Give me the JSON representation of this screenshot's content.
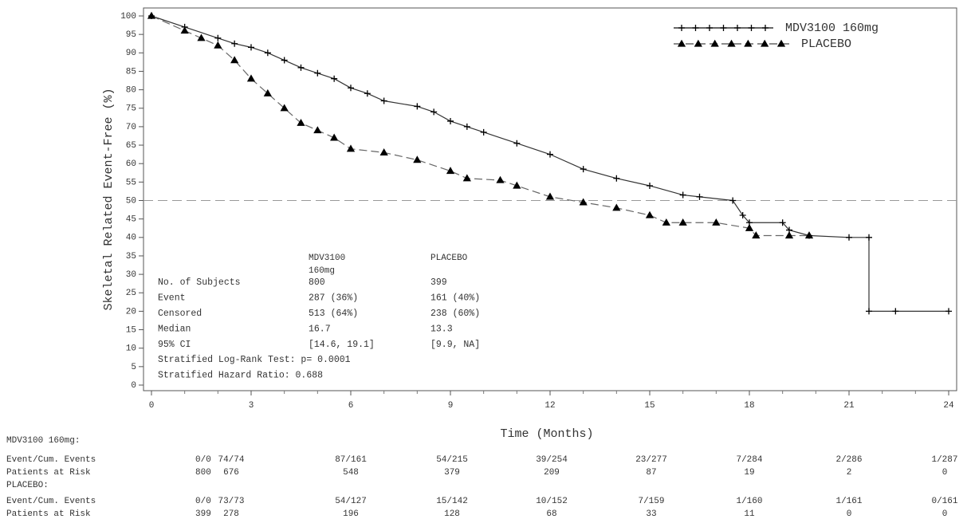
{
  "chart_data": {
    "type": "line",
    "ylabel": "Skeletal Related Event-Free (%)",
    "xlabel": "Time (Months)",
    "xlim": [
      0,
      24
    ],
    "xticks": [
      0,
      3,
      6,
      9,
      12,
      15,
      18,
      21,
      24
    ],
    "ylim": [
      0,
      100
    ],
    "yticks": [
      0,
      5,
      10,
      15,
      20,
      25,
      30,
      35,
      40,
      45,
      50,
      55,
      60,
      65,
      70,
      75,
      80,
      85,
      90,
      95,
      100
    ],
    "hline": 50,
    "legend": "upper right",
    "series": [
      {
        "name": "MDV3100 160mg",
        "color": "#333333",
        "dash": false,
        "marker": "plus",
        "x": [
          0,
          1,
          2,
          2.5,
          3,
          3.5,
          4,
          4.5,
          5,
          5.5,
          6,
          6.5,
          7,
          8,
          8.5,
          9,
          9.5,
          10,
          11,
          12,
          13,
          14,
          15,
          16,
          16.5,
          17.5,
          17.8,
          18,
          19,
          19.2,
          19.8,
          21,
          21.6,
          21.6,
          22.4,
          24
        ],
        "values": [
          100,
          97,
          94,
          92.5,
          91.5,
          90,
          88,
          86,
          84.5,
          83,
          80.5,
          79,
          77,
          75.5,
          74,
          71.5,
          70,
          68.5,
          65.5,
          62.5,
          58.5,
          56,
          54,
          51.5,
          51,
          50,
          46,
          44,
          44,
          42,
          40.5,
          40,
          40,
          20,
          20,
          20
        ]
      },
      {
        "name": "PLACEBO",
        "color": "#666666",
        "dash": true,
        "marker": "triangle",
        "x": [
          0,
          1,
          1.5,
          2,
          2.5,
          3,
          3.5,
          4,
          4.5,
          5,
          5.5,
          6,
          7,
          8,
          9,
          9.5,
          10.5,
          11,
          12,
          13,
          14,
          15,
          15.5,
          16,
          17,
          18,
          18.2,
          19.2,
          19.8
        ],
        "values": [
          100,
          96,
          94,
          92,
          88,
          83,
          79,
          75,
          71,
          69,
          67,
          64,
          63,
          61,
          58,
          56,
          55.5,
          54,
          51,
          49.5,
          48,
          46,
          44,
          44,
          44,
          42.5,
          40.5,
          40.5,
          40.5
        ]
      }
    ],
    "summary": {
      "header": [
        [
          "MDV3100",
          "160mg"
        ],
        [
          "PLACEBO"
        ]
      ],
      "rows": [
        [
          "No. of Subjects",
          "800",
          "399"
        ],
        [
          "Event",
          "287 (36%)",
          "161 (40%)"
        ],
        [
          "Censored",
          "513 (64%)",
          "238 (60%)"
        ],
        [
          "Median",
          "16.7",
          "13.3"
        ],
        [
          "95% CI",
          "[14.6, 19.1]",
          "[9.9, NA]"
        ]
      ],
      "notes": [
        "Stratified Log-Rank Test: p= 0.0001",
        "Stratified Hazard Ratio: 0.688"
      ]
    },
    "risk_table": [
      {
        "name": "MDV3100 160mg:",
        "rows": [
          {
            "label": "Event/Cum. Events",
            "cells": [
              "0/0",
              "74/74",
              "87/161",
              "54/215",
              "39/254",
              "23/277",
              "7/284",
              "2/286",
              "1/287"
            ]
          },
          {
            "label": "Patients at Risk",
            "cells": [
              800,
              676,
              548,
              379,
              209,
              87,
              19,
              2,
              0
            ]
          }
        ]
      },
      {
        "name": "PLACEBO:",
        "rows": [
          {
            "label": "Event/Cum. Events",
            "cells": [
              "0/0",
              "73/73",
              "54/127",
              "15/142",
              "10/152",
              "7/159",
              "1/160",
              "1/161",
              "0/161"
            ]
          },
          {
            "label": "Patients at Risk",
            "cells": [
              399,
              278,
              196,
              128,
              68,
              33,
              11,
              0,
              0
            ]
          }
        ]
      }
    ]
  }
}
